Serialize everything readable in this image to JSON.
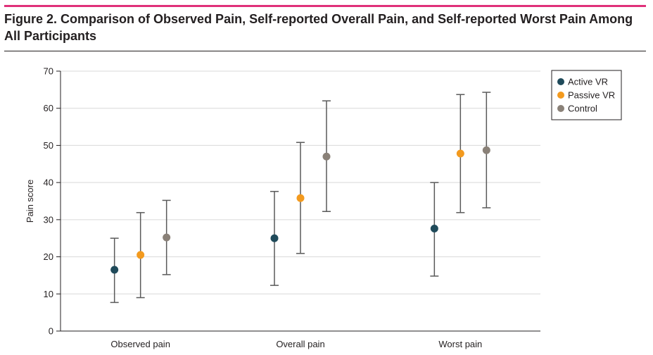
{
  "figure": {
    "title": "Figure 2. Comparison of Observed Pain, Self-reported Overall Pain, and Self-reported Worst Pain Among All Participants",
    "accent_color": "#e0317a"
  },
  "chart_data": {
    "type": "scatter",
    "title": "Figure 2. Comparison of Observed Pain, Self-reported Overall Pain, and Self-reported Worst Pain Among All Participants",
    "xlabel": "",
    "ylabel": "Pain score",
    "ylim": [
      0,
      70
    ],
    "yticks": [
      0,
      10,
      20,
      30,
      40,
      50,
      60,
      70
    ],
    "grid": true,
    "legend_position": "top-right",
    "categories": [
      "Observed pain",
      "Overall pain",
      "Worst pain"
    ],
    "series": [
      {
        "name": "Active VR",
        "color": "#1f4a5a",
        "values": [
          16.5,
          25.0,
          27.6
        ],
        "lower": [
          7.7,
          12.3,
          14.8
        ],
        "upper": [
          25.0,
          37.6,
          40.0
        ]
      },
      {
        "name": "Passive VR",
        "color": "#f39a1e",
        "values": [
          20.5,
          35.8,
          47.8
        ],
        "lower": [
          9.0,
          20.9,
          31.9
        ],
        "upper": [
          31.9,
          50.8,
          63.7
        ]
      },
      {
        "name": "Control",
        "color": "#8a8178",
        "values": [
          25.2,
          47.0,
          48.7
        ],
        "lower": [
          15.2,
          32.2,
          33.2
        ],
        "upper": [
          35.2,
          62.0,
          64.3
        ]
      }
    ]
  }
}
